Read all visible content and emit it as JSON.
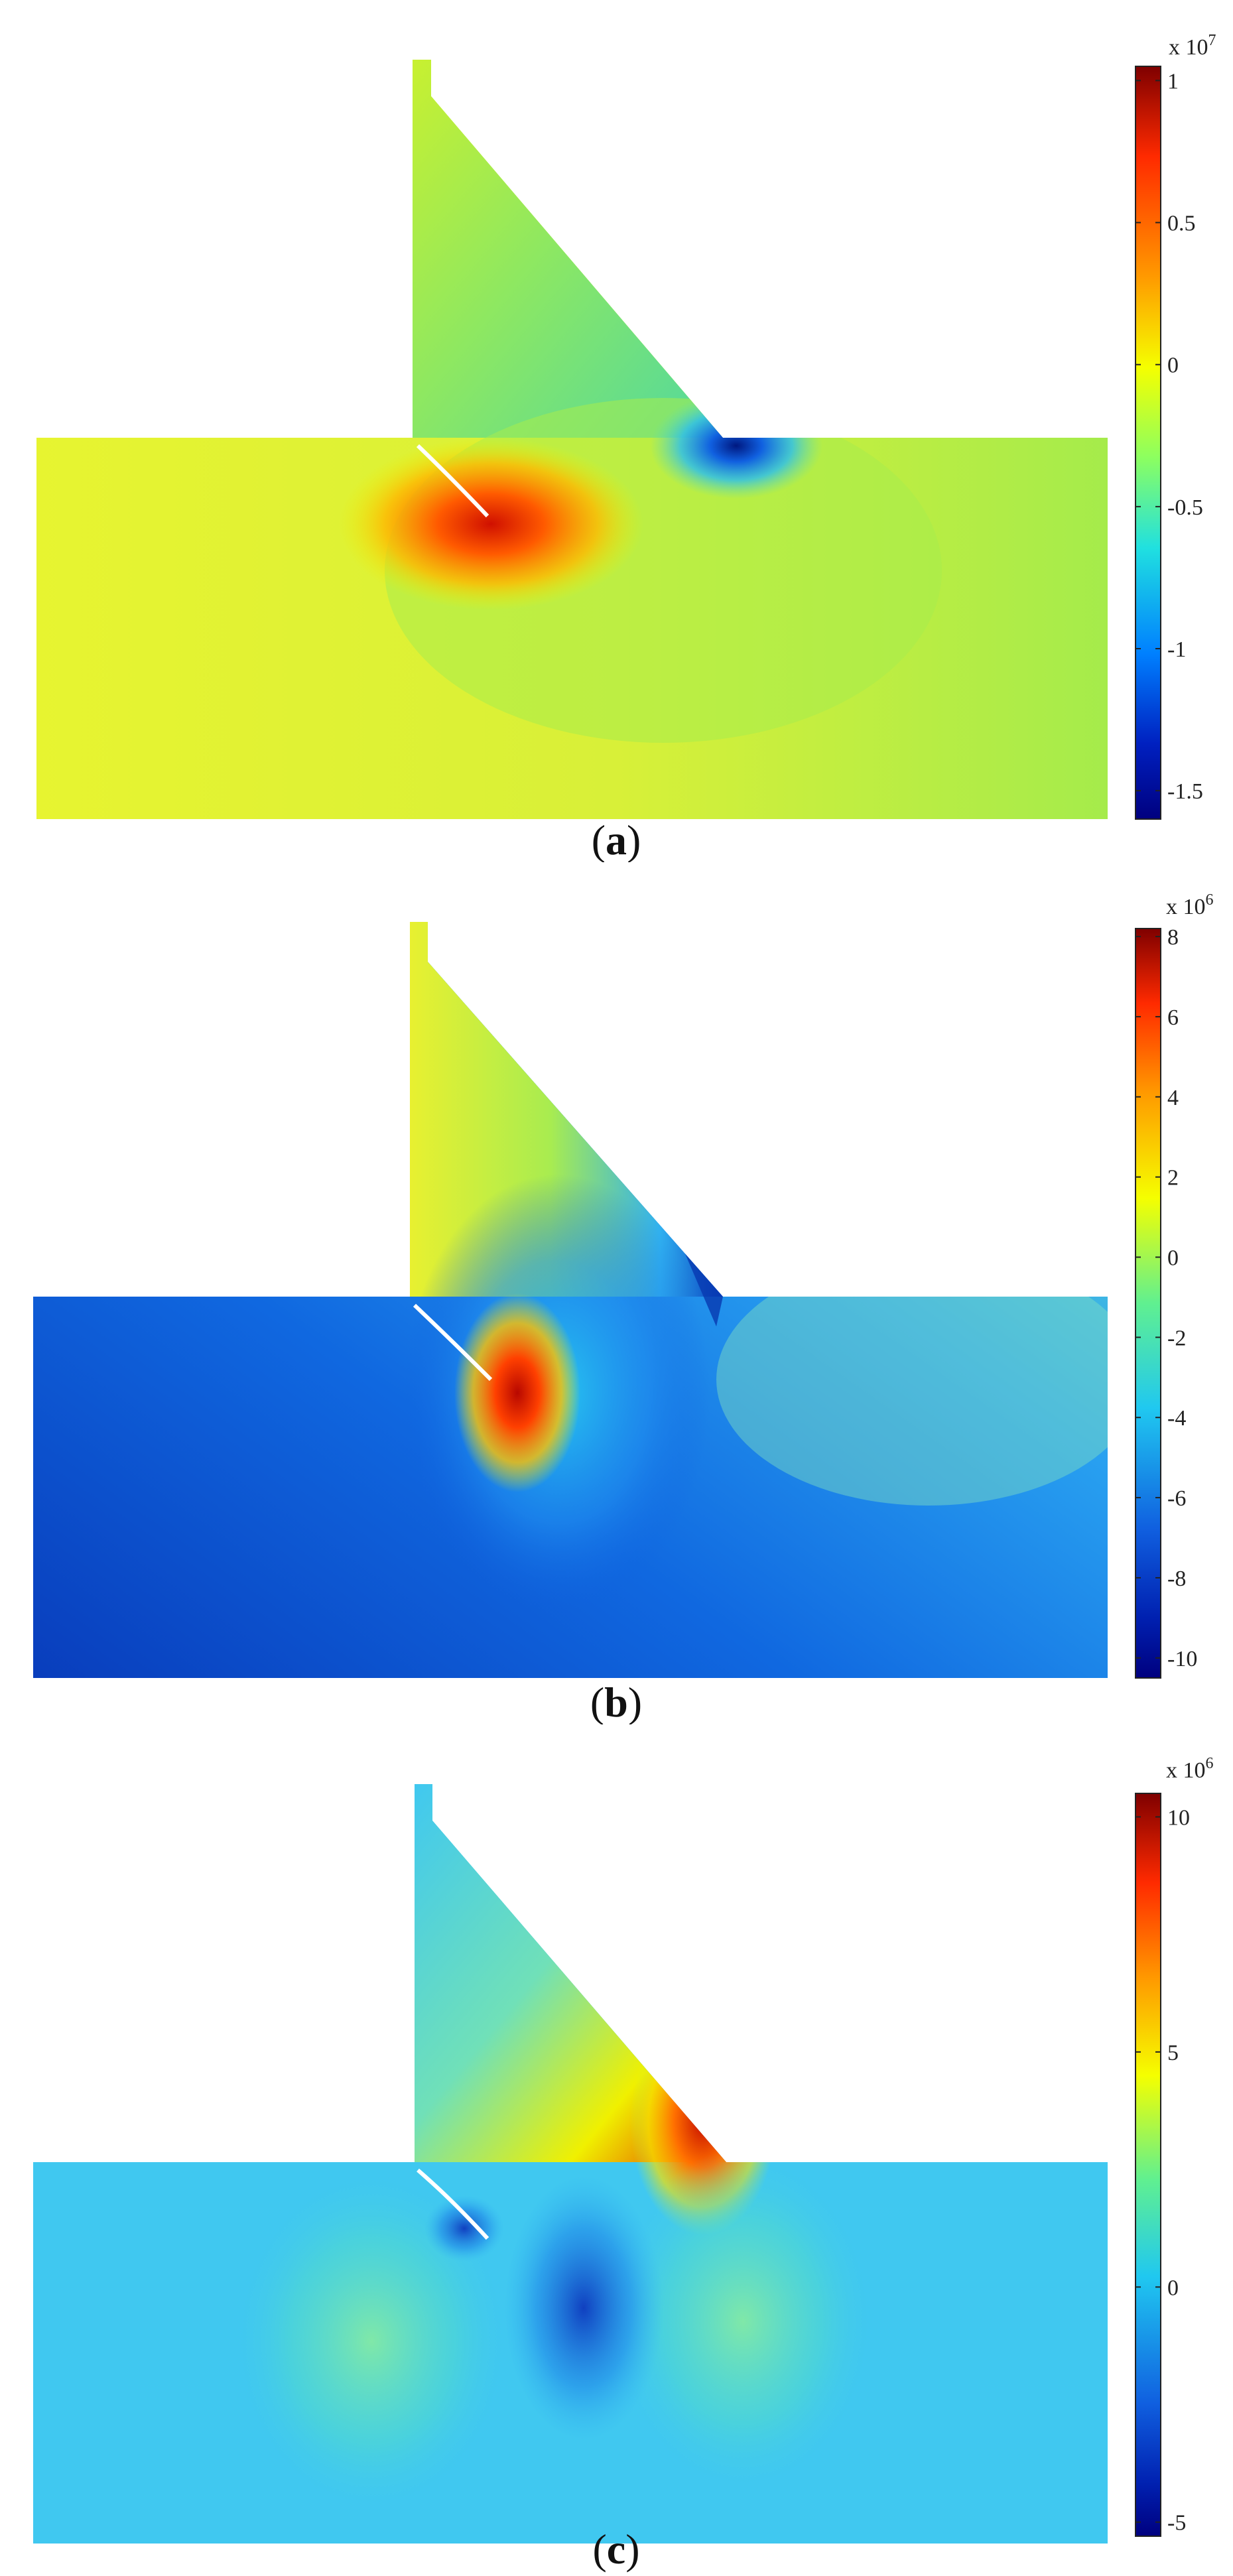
{
  "panels": [
    {
      "id": "a",
      "caption_open": "(",
      "caption_letter": "a",
      "caption_close": ")",
      "colorbar": {
        "multiplier": "x 10",
        "exponent": "7",
        "ticks": [
          "1",
          "0.5",
          "0",
          "-0.5",
          "-1",
          "-1.5"
        ],
        "tick_values": [
          1,
          0.5,
          0,
          -0.5,
          -1,
          -1.5
        ],
        "min": -1.6,
        "max": 1.05
      }
    },
    {
      "id": "b",
      "caption_open": "(",
      "caption_letter": "b",
      "caption_close": ")",
      "colorbar": {
        "multiplier": "x 10",
        "exponent": "6",
        "ticks": [
          "8",
          "6",
          "4",
          "2",
          "0",
          "-2",
          "-4",
          "-6",
          "-8",
          "-10"
        ],
        "tick_values": [
          8,
          6,
          4,
          2,
          0,
          -2,
          -4,
          -6,
          -8,
          -10
        ],
        "min": -10.5,
        "max": 8.2
      }
    },
    {
      "id": "c",
      "caption_open": "(",
      "caption_letter": "c",
      "caption_close": ")",
      "colorbar": {
        "multiplier": "x 10",
        "exponent": "6",
        "ticks": [
          "10",
          "5",
          "0",
          "-5"
        ],
        "tick_values": [
          10,
          5,
          0,
          -5
        ],
        "min": -5.3,
        "max": 10.5
      }
    }
  ],
  "colormap": "jet"
}
